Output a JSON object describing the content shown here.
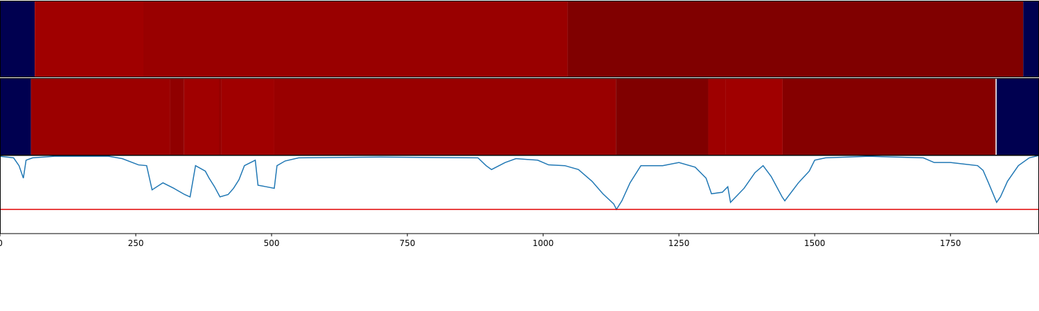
{
  "chart_data": [
    {
      "type": "strip",
      "xlim": [
        0,
        1913
      ],
      "segments": [
        {
          "start": 0,
          "end": 64,
          "color": "#000050"
        },
        {
          "start": 64,
          "end": 264,
          "color": "#a00000"
        },
        {
          "start": 264,
          "end": 1045,
          "color": "#990000"
        },
        {
          "start": 1045,
          "end": 1884,
          "color": "#800000"
        },
        {
          "start": 1884,
          "end": 1913,
          "color": "#000050"
        }
      ]
    },
    {
      "type": "strip",
      "xlim": [
        0,
        1913
      ],
      "segments": [
        {
          "start": 0,
          "end": 57,
          "color": "#000050"
        },
        {
          "start": 57,
          "end": 313,
          "color": "#9c0000"
        },
        {
          "start": 313,
          "end": 339,
          "color": "#900000"
        },
        {
          "start": 339,
          "end": 403,
          "color": "#a00000"
        },
        {
          "start": 403,
          "end": 408,
          "color": "#960000"
        },
        {
          "start": 408,
          "end": 505,
          "color": "#a00000"
        },
        {
          "start": 505,
          "end": 1134,
          "color": "#990000"
        },
        {
          "start": 1134,
          "end": 1304,
          "color": "#800000"
        },
        {
          "start": 1304,
          "end": 1336,
          "color": "#9e0000"
        },
        {
          "start": 1336,
          "end": 1441,
          "color": "#a00000"
        },
        {
          "start": 1441,
          "end": 1833,
          "color": "#850000"
        },
        {
          "start": 1835,
          "end": 1913,
          "color": "#000050"
        }
      ]
    },
    {
      "type": "line",
      "xlim": [
        0,
        1913
      ],
      "ylim": [
        0,
        1
      ],
      "xticks": [
        0,
        250,
        500,
        750,
        1000,
        1250,
        1500,
        1750
      ],
      "color": "#1f77b4",
      "threshold": {
        "value": 0.31,
        "color": "#e00000"
      },
      "x": [
        0,
        25,
        35,
        43,
        48,
        60,
        100,
        200,
        225,
        255,
        270,
        280,
        300,
        320,
        340,
        350,
        360,
        378,
        385,
        395,
        405,
        420,
        430,
        440,
        450,
        470,
        475,
        490,
        505,
        510,
        525,
        550,
        700,
        880,
        895,
        905,
        930,
        950,
        990,
        1010,
        1040,
        1065,
        1090,
        1110,
        1130,
        1135,
        1145,
        1160,
        1180,
        1220,
        1250,
        1280,
        1300,
        1310,
        1330,
        1340,
        1345,
        1370,
        1390,
        1405,
        1420,
        1440,
        1445,
        1470,
        1490,
        1500,
        1520,
        1600,
        1700,
        1720,
        1750,
        1800,
        1810,
        1820,
        1835,
        1842,
        1855,
        1875,
        1895,
        1913
      ],
      "values": [
        0.99,
        0.97,
        0.87,
        0.71,
        0.94,
        0.97,
        0.99,
        0.99,
        0.96,
        0.88,
        0.87,
        0.56,
        0.65,
        0.58,
        0.5,
        0.47,
        0.87,
        0.8,
        0.71,
        0.6,
        0.47,
        0.5,
        0.58,
        0.69,
        0.87,
        0.94,
        0.62,
        0.6,
        0.58,
        0.87,
        0.93,
        0.97,
        0.98,
        0.97,
        0.87,
        0.82,
        0.91,
        0.96,
        0.94,
        0.88,
        0.87,
        0.82,
        0.67,
        0.51,
        0.38,
        0.31,
        0.42,
        0.65,
        0.87,
        0.87,
        0.91,
        0.85,
        0.71,
        0.51,
        0.53,
        0.6,
        0.4,
        0.58,
        0.78,
        0.87,
        0.73,
        0.47,
        0.42,
        0.65,
        0.8,
        0.94,
        0.97,
        0.99,
        0.97,
        0.91,
        0.91,
        0.87,
        0.81,
        0.65,
        0.4,
        0.47,
        0.67,
        0.87,
        0.97,
        1
      ]
    }
  ]
}
